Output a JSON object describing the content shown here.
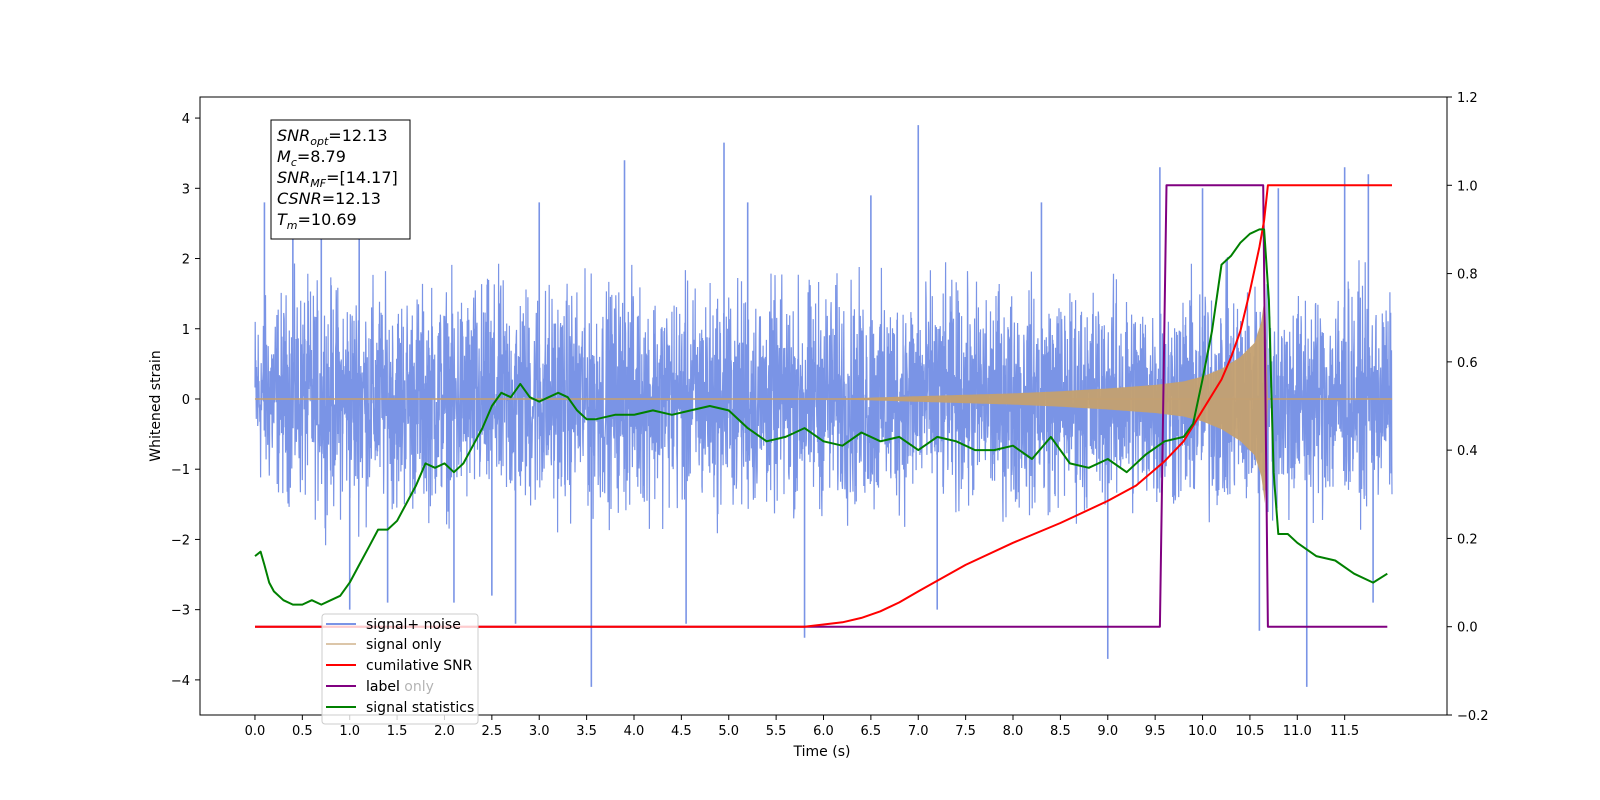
{
  "chart_data": {
    "type": "line",
    "xlabel": "Time (s)",
    "ylabel_left": "Whitened strain",
    "ylabel_right": "",
    "xlim": [
      -0.58,
      12.58
    ],
    "ylim_left": [
      -4.5,
      4.3
    ],
    "ylim_right": [
      -0.2,
      1.2
    ],
    "x_ticks": [
      "0.0",
      "0.5",
      "1.0",
      "1.5",
      "2.0",
      "2.5",
      "3.0",
      "3.5",
      "4.0",
      "4.5",
      "5.0",
      "5.5",
      "6.0",
      "6.5",
      "7.0",
      "7.5",
      "8.0",
      "8.5",
      "9.0",
      "9.5",
      "10.0",
      "10.5",
      "11.0",
      "11.5"
    ],
    "y_ticks_left": [
      "4",
      "3",
      "2",
      "1",
      "0",
      "−1",
      "−2",
      "−3",
      "−4"
    ],
    "y_ticks_right": [
      "1.2",
      "1.0",
      "0.8",
      "0.6",
      "0.4",
      "0.2",
      "0.0",
      "−0.2"
    ],
    "grid": false,
    "legend_position": "lower-left",
    "annotation": {
      "lines": [
        {
          "base": "SNR",
          "sub": "opt",
          "value": "=12.13"
        },
        {
          "base": "M",
          "sub": "c",
          "value": "=8.79"
        },
        {
          "base": "SNR",
          "sub": "MF",
          "value": "=[14.17]"
        },
        {
          "base": "CSNR",
          "sub": "",
          "value": "=12.13"
        },
        {
          "base": "T",
          "sub": "m",
          "value": "=10.69"
        }
      ]
    },
    "series": [
      {
        "name": "signal+ noise",
        "axis": "left",
        "color": "#7a94e6",
        "x_range": [
          0.0,
          12.0
        ],
        "envelope_upper": [
          [
            0.0,
            1.9
          ],
          [
            0.5,
            2.2
          ],
          [
            1.0,
            2.3
          ],
          [
            1.5,
            2.2
          ],
          [
            2.0,
            2.2
          ],
          [
            2.5,
            2.3
          ],
          [
            3.0,
            2.3
          ],
          [
            3.5,
            2.2
          ],
          [
            4.0,
            2.3
          ],
          [
            4.5,
            2.2
          ],
          [
            5.0,
            2.3
          ],
          [
            5.5,
            2.2
          ],
          [
            6.0,
            2.3
          ],
          [
            6.5,
            2.2
          ],
          [
            7.0,
            2.3
          ],
          [
            7.5,
            2.2
          ],
          [
            8.0,
            2.2
          ],
          [
            8.5,
            2.2
          ],
          [
            9.0,
            2.2
          ],
          [
            9.5,
            2.2
          ],
          [
            10.0,
            2.3
          ],
          [
            10.5,
            2.3
          ],
          [
            11.0,
            2.2
          ],
          [
            11.5,
            2.3
          ],
          [
            12.0,
            2.0
          ]
        ],
        "envelope_lower": [
          [
            0.0,
            -1.8
          ],
          [
            0.5,
            -2.1
          ],
          [
            1.0,
            -2.3
          ],
          [
            1.5,
            -2.2
          ],
          [
            2.0,
            -2.2
          ],
          [
            2.5,
            -2.3
          ],
          [
            3.0,
            -2.3
          ],
          [
            3.5,
            -2.2
          ],
          [
            4.0,
            -2.2
          ],
          [
            4.5,
            -2.2
          ],
          [
            5.0,
            -2.3
          ],
          [
            5.5,
            -2.2
          ],
          [
            6.0,
            -2.2
          ],
          [
            6.5,
            -2.3
          ],
          [
            7.0,
            -2.2
          ],
          [
            7.5,
            -2.2
          ],
          [
            8.0,
            -2.2
          ],
          [
            8.5,
            -2.2
          ],
          [
            9.0,
            -2.2
          ],
          [
            9.5,
            -2.2
          ],
          [
            10.0,
            -2.3
          ],
          [
            10.5,
            -2.3
          ],
          [
            11.0,
            -2.3
          ],
          [
            11.5,
            -2.2
          ],
          [
            12.0,
            -2.0
          ]
        ],
        "spikes": [
          [
            0.1,
            2.8
          ],
          [
            0.4,
            2.9
          ],
          [
            0.7,
            3.0
          ],
          [
            1.0,
            -3.0
          ],
          [
            1.1,
            2.8
          ],
          [
            1.4,
            -2.9
          ],
          [
            2.1,
            -2.9
          ],
          [
            2.5,
            -2.8
          ],
          [
            2.75,
            -3.2
          ],
          [
            3.0,
            2.8
          ],
          [
            3.55,
            -4.1
          ],
          [
            3.9,
            3.4
          ],
          [
            4.55,
            -3.2
          ],
          [
            4.95,
            3.65
          ],
          [
            5.2,
            2.8
          ],
          [
            5.8,
            -3.4
          ],
          [
            6.5,
            2.9
          ],
          [
            7.0,
            3.9
          ],
          [
            7.2,
            -3.0
          ],
          [
            8.3,
            2.8
          ],
          [
            9.0,
            -3.7
          ],
          [
            9.55,
            3.3
          ],
          [
            10.0,
            3.0
          ],
          [
            10.6,
            -3.3
          ],
          [
            10.8,
            3.0
          ],
          [
            11.1,
            -4.1
          ],
          [
            11.5,
            3.3
          ],
          [
            11.75,
            3.2
          ],
          [
            11.8,
            -2.9
          ]
        ]
      },
      {
        "name": "signal only",
        "axis": "left",
        "color": "#c4a070",
        "amplitude": [
          [
            0.0,
            0.0
          ],
          [
            6.0,
            0.0
          ],
          [
            6.5,
            0.02
          ],
          [
            7.0,
            0.04
          ],
          [
            7.5,
            0.06
          ],
          [
            8.0,
            0.08
          ],
          [
            8.5,
            0.11
          ],
          [
            9.0,
            0.15
          ],
          [
            9.5,
            0.2
          ],
          [
            9.8,
            0.25
          ],
          [
            10.0,
            0.32
          ],
          [
            10.2,
            0.43
          ],
          [
            10.4,
            0.6
          ],
          [
            10.55,
            0.8
          ],
          [
            10.62,
            1.1
          ],
          [
            10.66,
            1.5
          ],
          [
            10.69,
            0.0
          ],
          [
            12.0,
            0.0
          ]
        ]
      },
      {
        "name": "cumilative SNR",
        "axis": "right",
        "color": "#ff0000",
        "x": [
          0.0,
          5.5,
          5.8,
          6.0,
          6.2,
          6.4,
          6.6,
          6.8,
          7.0,
          7.5,
          8.0,
          8.5,
          9.0,
          9.3,
          9.6,
          9.8,
          10.0,
          10.2,
          10.3,
          10.4,
          10.5,
          10.6,
          10.65,
          10.69,
          10.75,
          12.0
        ],
        "y": [
          0.0,
          0.0,
          0.0,
          0.005,
          0.01,
          0.02,
          0.035,
          0.055,
          0.08,
          0.14,
          0.19,
          0.235,
          0.285,
          0.32,
          0.375,
          0.42,
          0.49,
          0.56,
          0.61,
          0.67,
          0.76,
          0.86,
          0.92,
          1.0,
          1.0,
          1.0
        ]
      },
      {
        "name": "label",
        "axis": "right",
        "color": "#800080",
        "x": [
          0.0,
          9.55,
          9.62,
          10.64,
          10.69,
          11.95
        ],
        "y": [
          0.0,
          0.0,
          1.0,
          1.0,
          0.0,
          0.0
        ]
      },
      {
        "name": "label only",
        "axis": "right",
        "color": "#ff7f0e",
        "x": [],
        "y": []
      },
      {
        "name": "signal statistics",
        "axis": "right",
        "color": "#008000",
        "x": [
          0.0,
          0.06,
          0.1,
          0.15,
          0.2,
          0.3,
          0.4,
          0.5,
          0.6,
          0.7,
          0.8,
          0.9,
          1.0,
          1.1,
          1.2,
          1.3,
          1.4,
          1.5,
          1.6,
          1.7,
          1.8,
          1.9,
          2.0,
          2.1,
          2.2,
          2.3,
          2.4,
          2.5,
          2.6,
          2.7,
          2.8,
          2.9,
          3.0,
          3.1,
          3.2,
          3.3,
          3.4,
          3.5,
          3.6,
          3.8,
          4.0,
          4.2,
          4.4,
          4.6,
          4.8,
          5.0,
          5.2,
          5.4,
          5.6,
          5.8,
          6.0,
          6.2,
          6.4,
          6.6,
          6.8,
          7.0,
          7.2,
          7.4,
          7.6,
          7.8,
          8.0,
          8.2,
          8.4,
          8.6,
          8.8,
          9.0,
          9.2,
          9.4,
          9.6,
          9.8,
          9.9,
          10.0,
          10.1,
          10.2,
          10.3,
          10.4,
          10.5,
          10.6,
          10.65,
          10.7,
          10.75,
          10.8,
          10.9,
          11.0,
          11.2,
          11.4,
          11.6,
          11.8,
          11.95
        ],
        "y": [
          0.16,
          0.17,
          0.14,
          0.1,
          0.08,
          0.06,
          0.05,
          0.05,
          0.06,
          0.05,
          0.06,
          0.07,
          0.1,
          0.14,
          0.18,
          0.22,
          0.22,
          0.24,
          0.28,
          0.32,
          0.37,
          0.36,
          0.37,
          0.35,
          0.37,
          0.41,
          0.45,
          0.5,
          0.53,
          0.52,
          0.55,
          0.52,
          0.51,
          0.52,
          0.53,
          0.52,
          0.49,
          0.47,
          0.47,
          0.48,
          0.48,
          0.49,
          0.48,
          0.49,
          0.5,
          0.49,
          0.45,
          0.42,
          0.43,
          0.45,
          0.42,
          0.41,
          0.44,
          0.42,
          0.43,
          0.4,
          0.43,
          0.42,
          0.4,
          0.4,
          0.41,
          0.38,
          0.43,
          0.37,
          0.36,
          0.38,
          0.35,
          0.39,
          0.42,
          0.43,
          0.46,
          0.56,
          0.67,
          0.82,
          0.84,
          0.87,
          0.89,
          0.9,
          0.9,
          0.74,
          0.35,
          0.21,
          0.21,
          0.19,
          0.16,
          0.15,
          0.12,
          0.1,
          0.12
        ]
      }
    ]
  }
}
